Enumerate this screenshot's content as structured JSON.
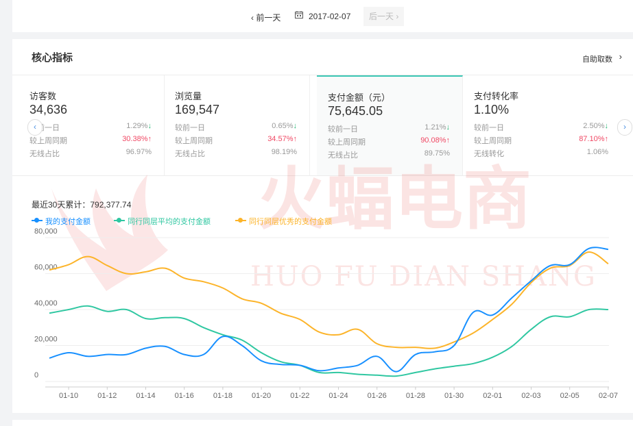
{
  "datebar": {
    "prev_label": "‹ 前一天",
    "date": "2017-02-07",
    "next_label": "后一天 ›",
    "calendar_icon": "calendar-icon"
  },
  "core": {
    "title": "核心指标",
    "self_fetch": "自助取数",
    "metrics": [
      {
        "name": "访客数",
        "value": "34,636",
        "rows": [
          {
            "label": "较前一日",
            "val": "1.29%",
            "dir": "down"
          },
          {
            "label": "较上周同期",
            "val": "30.38%",
            "dir": "up"
          },
          {
            "label": "无线占比",
            "val": "96.97%",
            "dir": ""
          }
        ]
      },
      {
        "name": "浏览量",
        "value": "169,547",
        "rows": [
          {
            "label": "较前一日",
            "val": "0.65%",
            "dir": "down"
          },
          {
            "label": "较上周同期",
            "val": "34.57%",
            "dir": "up"
          },
          {
            "label": "无线占比",
            "val": "98.19%",
            "dir": ""
          }
        ]
      },
      {
        "name": "支付金额（元）",
        "value": "75,645.05",
        "rows": [
          {
            "label": "较前一日",
            "val": "1.21%",
            "dir": "down"
          },
          {
            "label": "较上周同期",
            "val": "90.08%",
            "dir": "up"
          },
          {
            "label": "无线占比",
            "val": "89.75%",
            "dir": ""
          }
        ]
      },
      {
        "name": "支付转化率",
        "value": "1.10%",
        "rows": [
          {
            "label": "较前一日",
            "val": "2.50%",
            "dir": "down"
          },
          {
            "label": "较上周同期",
            "val": "87.10%",
            "dir": "up"
          },
          {
            "label": "无线转化",
            "val": "1.06%",
            "dir": ""
          }
        ]
      }
    ]
  },
  "watermark": {
    "cn": "火蝠电商",
    "en": "HUO FU DIAN SHANG"
  },
  "cumulative": "最近30天累计：792,377.74",
  "colors": {
    "mine": "#1890ff",
    "avg": "#2fc7a1",
    "top": "#fcb42a",
    "accent": "#3bc7b4",
    "up": "#f04864",
    "down": "#22b573"
  },
  "chart_data": {
    "type": "line",
    "x": [
      "01-09",
      "01-10",
      "01-11",
      "01-12",
      "01-13",
      "01-14",
      "01-15",
      "01-16",
      "01-17",
      "01-18",
      "01-19",
      "01-20",
      "01-21",
      "01-22",
      "01-23",
      "01-24",
      "01-25",
      "01-26",
      "01-27",
      "01-28",
      "01-29",
      "01-30",
      "01-31",
      "02-01",
      "02-02",
      "02-03",
      "02-04",
      "02-05",
      "02-06",
      "02-07"
    ],
    "tick_labels": [
      "01-10",
      "01-12",
      "01-14",
      "01-16",
      "01-18",
      "01-20",
      "01-22",
      "01-24",
      "01-26",
      "01-28",
      "01-30",
      "02-01",
      "02-03",
      "02-05",
      "02-07"
    ],
    "yticks": [
      0,
      20000,
      40000,
      60000,
      80000
    ],
    "ytick_labels": [
      "0",
      "20,000",
      "40,000",
      "60,000",
      "80,000"
    ],
    "ylim": [
      0,
      80000
    ],
    "legend_position": "top-left",
    "series": [
      {
        "name": "我的支付金额",
        "color": "#1890ff",
        "values": [
          13000,
          16000,
          14000,
          15000,
          15000,
          18500,
          19500,
          15000,
          15000,
          25000,
          20000,
          11500,
          9500,
          9000,
          6000,
          7500,
          9000,
          14000,
          5500,
          15000,
          16500,
          20000,
          38500,
          37000,
          46500,
          56000,
          64500,
          65000,
          74000,
          73500
        ]
      },
      {
        "name": "同行同层平均的支付金额",
        "color": "#2fc7a1",
        "values": [
          38000,
          40000,
          42000,
          39000,
          40000,
          35000,
          35500,
          35000,
          30000,
          26000,
          23000,
          16000,
          11000,
          9000,
          5000,
          5000,
          4000,
          3500,
          3000,
          5000,
          7000,
          8500,
          10000,
          13500,
          19500,
          29000,
          36000,
          36000,
          40000,
          40000
        ]
      },
      {
        "name": "同行同层优秀的支付金额",
        "color": "#fcb42a",
        "values": [
          62000,
          65000,
          69500,
          64500,
          60000,
          61000,
          63000,
          57500,
          55500,
          52000,
          46000,
          43500,
          38000,
          34500,
          27500,
          26000,
          29000,
          21000,
          19000,
          19000,
          18500,
          22000,
          27000,
          34500,
          43000,
          55000,
          63000,
          64500,
          72000,
          65500
        ]
      }
    ]
  }
}
